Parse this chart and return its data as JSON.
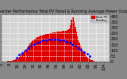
{
  "title": "Solar PV/Inverter Performance Total PV Panel & Running Average Power Output",
  "fig_bg": "#888888",
  "plot_bg": "#d4d4d4",
  "bar_color": "#dd0000",
  "avg_color": "#0000ff",
  "grid_color": "#ffffff",
  "ylim": [
    0,
    420
  ],
  "ytick_labels": [
    "0",
    "50",
    "100",
    "150",
    "200",
    "250",
    "300",
    "350",
    "400"
  ],
  "ytick_vals": [
    0,
    50,
    100,
    150,
    200,
    250,
    300,
    350,
    400
  ],
  "num_bars": 110,
  "bar_heights": [
    1,
    1,
    2,
    2,
    3,
    3,
    4,
    5,
    6,
    7,
    8,
    10,
    12,
    15,
    18,
    22,
    28,
    35,
    42,
    50,
    60,
    70,
    80,
    90,
    100,
    112,
    125,
    138,
    150,
    162,
    172,
    182,
    190,
    198,
    205,
    210,
    215,
    220,
    225,
    228,
    230,
    232,
    235,
    238,
    240,
    242,
    244,
    246,
    248,
    250,
    252,
    254,
    256,
    258,
    260,
    262,
    264,
    265,
    266,
    267,
    268,
    269,
    270,
    271,
    272,
    273,
    275,
    278,
    285,
    295,
    320,
    370,
    400,
    390,
    355,
    305,
    265,
    225,
    190,
    165,
    145,
    125,
    105,
    90,
    75,
    62,
    50,
    40,
    32,
    26,
    20,
    15,
    11,
    8,
    5,
    3,
    2,
    1,
    0,
    0,
    0,
    0,
    0,
    0,
    0,
    0,
    0,
    0,
    0,
    0
  ],
  "avg_x": [
    15,
    18,
    21,
    24,
    27,
    30,
    33,
    36,
    39,
    42,
    45,
    48,
    51,
    54,
    57,
    60,
    63,
    66,
    69,
    72,
    75,
    78,
    81,
    84,
    87,
    90
  ],
  "avg_y": [
    35,
    60,
    80,
    100,
    120,
    140,
    155,
    168,
    178,
    186,
    192,
    196,
    198,
    198,
    196,
    192,
    186,
    178,
    168,
    155,
    140,
    122,
    104,
    86,
    68,
    50
  ],
  "legend_labels": [
    "Total PV",
    "RunAvg"
  ],
  "title_fontsize": 3.5,
  "tick_fontsize": 3.5
}
